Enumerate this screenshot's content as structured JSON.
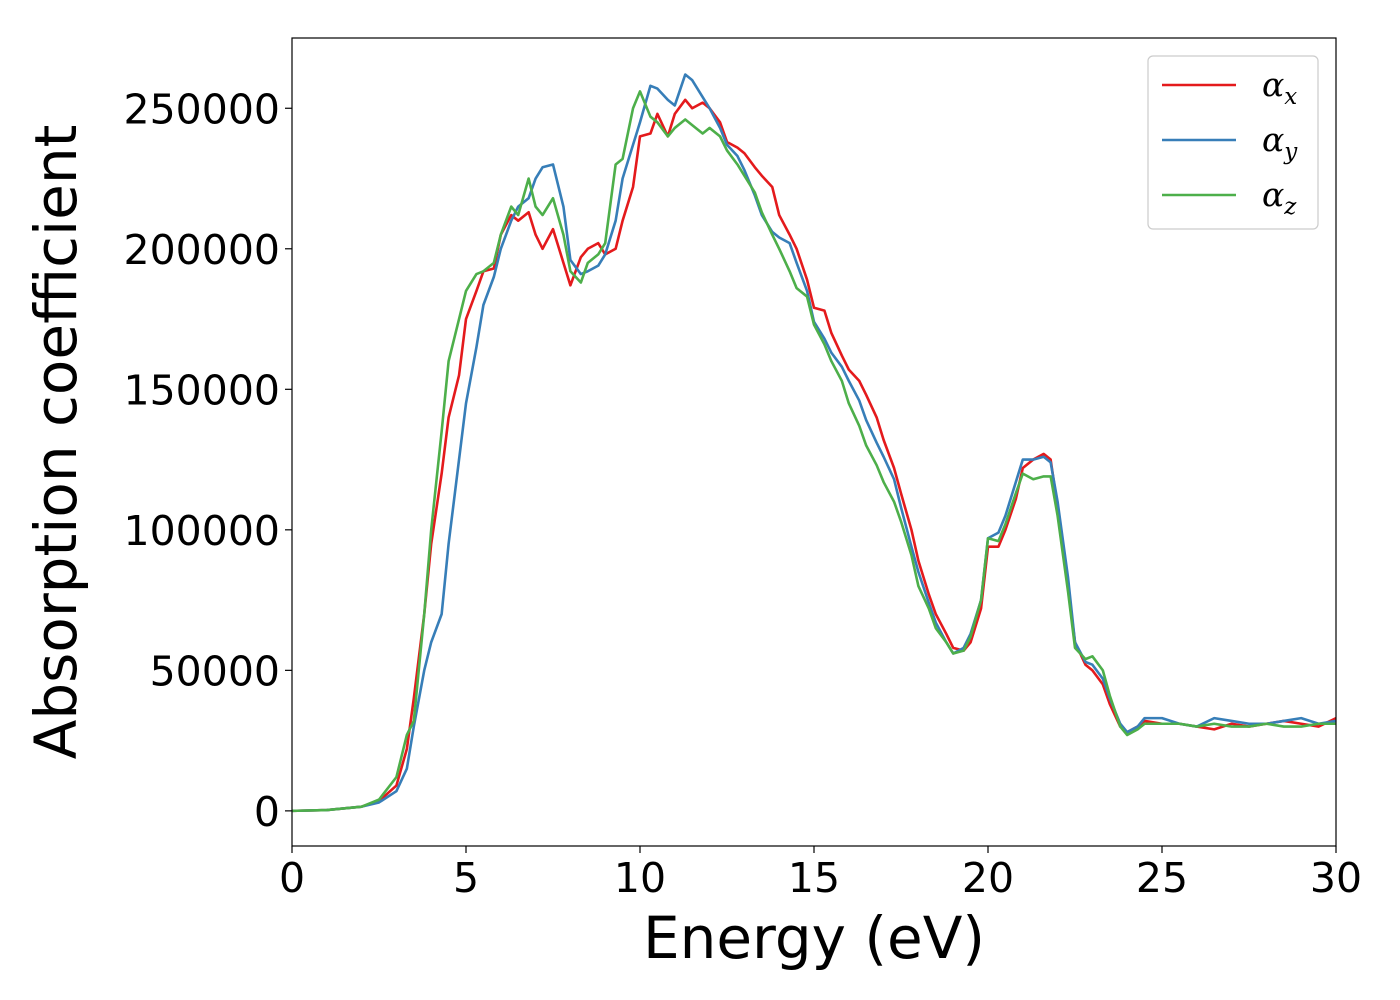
{
  "chart_data": {
    "type": "line",
    "xlabel": "Energy (eV)",
    "ylabel": "Absorption coefficient",
    "xlim": [
      0,
      30
    ],
    "ylim": [
      -12500,
      275000
    ],
    "xticks": [
      0,
      5,
      10,
      15,
      20,
      25,
      30
    ],
    "yticks": [
      0,
      50000,
      100000,
      150000,
      200000,
      250000
    ],
    "xtick_labels": [
      "0",
      "5",
      "10",
      "15",
      "20",
      "25",
      "30"
    ],
    "ytick_labels": [
      "0",
      "50000",
      "100000",
      "150000",
      "200000",
      "250000"
    ],
    "grid": false,
    "legend_position": "top-right",
    "series": [
      {
        "name": "α",
        "subscript": "x",
        "color": "#e41a1c",
        "x": [
          0,
          1,
          2,
          2.5,
          3,
          3.3,
          3.5,
          3.8,
          4,
          4.3,
          4.5,
          4.8,
          5,
          5.3,
          5.5,
          5.8,
          6,
          6.3,
          6.5,
          6.8,
          7,
          7.2,
          7.5,
          7.8,
          8,
          8.3,
          8.5,
          8.8,
          9,
          9.3,
          9.5,
          9.8,
          10,
          10.3,
          10.5,
          10.8,
          11,
          11.3,
          11.5,
          11.8,
          12,
          12.3,
          12.5,
          12.8,
          13,
          13.3,
          13.5,
          13.8,
          14,
          14.3,
          14.5,
          14.8,
          15,
          15.3,
          15.5,
          15.8,
          16,
          16.3,
          16.5,
          16.8,
          17,
          17.3,
          17.5,
          17.8,
          18,
          18.3,
          18.5,
          18.8,
          19,
          19.3,
          19.5,
          19.8,
          20,
          20.3,
          20.5,
          20.8,
          21,
          21.3,
          21.6,
          21.8,
          22,
          22.3,
          22.5,
          22.8,
          23,
          23.3,
          23.5,
          23.8,
          24,
          24.3,
          24.5,
          25,
          25.5,
          26,
          26.5,
          27,
          27.5,
          28,
          28.5,
          29,
          29.5,
          30
        ],
        "values": [
          0,
          300,
          1500,
          3500,
          9000,
          22000,
          40000,
          70000,
          95000,
          120000,
          140000,
          155000,
          175000,
          185000,
          192000,
          193000,
          205000,
          212000,
          210000,
          213000,
          205000,
          200000,
          207000,
          195000,
          187000,
          197000,
          200000,
          202000,
          198000,
          200000,
          210000,
          222000,
          240000,
          241000,
          248000,
          240000,
          248000,
          253000,
          250000,
          252000,
          250000,
          245000,
          238000,
          236000,
          234000,
          229000,
          226000,
          222000,
          212000,
          205000,
          200000,
          189000,
          179000,
          178000,
          170000,
          162000,
          157000,
          153000,
          148000,
          140000,
          132000,
          122000,
          113000,
          100000,
          89000,
          77000,
          70000,
          63000,
          58000,
          57000,
          60000,
          72000,
          94000,
          94000,
          100000,
          111000,
          122000,
          125000,
          127000,
          125000,
          108000,
          80000,
          60000,
          52000,
          50000,
          45000,
          38000,
          30000,
          28000,
          30000,
          32000,
          31000,
          31000,
          30000,
          29000,
          31000,
          30000,
          31000,
          32000,
          31000,
          30000,
          33000
        ]
      },
      {
        "name": "α",
        "subscript": "y",
        "color": "#377eb8",
        "x": [
          0,
          1,
          2,
          2.5,
          3,
          3.3,
          3.5,
          3.8,
          4,
          4.3,
          4.5,
          4.8,
          5,
          5.3,
          5.5,
          5.8,
          6,
          6.3,
          6.5,
          6.8,
          7,
          7.2,
          7.5,
          7.8,
          8,
          8.3,
          8.5,
          8.8,
          9,
          9.3,
          9.5,
          9.8,
          10,
          10.3,
          10.5,
          10.8,
          11,
          11.3,
          11.5,
          11.8,
          12,
          12.3,
          12.5,
          12.8,
          13,
          13.3,
          13.5,
          13.8,
          14,
          14.3,
          14.5,
          14.8,
          15,
          15.3,
          15.5,
          15.8,
          16,
          16.3,
          16.5,
          16.8,
          17,
          17.3,
          17.5,
          17.8,
          18,
          18.3,
          18.5,
          18.8,
          19,
          19.3,
          19.5,
          19.8,
          20,
          20.3,
          20.5,
          20.8,
          21,
          21.3,
          21.6,
          21.8,
          22,
          22.3,
          22.5,
          22.8,
          23,
          23.3,
          23.5,
          23.8,
          24,
          24.3,
          24.5,
          25,
          25.5,
          26,
          26.5,
          27,
          27.5,
          28,
          28.5,
          29,
          29.5,
          30
        ],
        "values": [
          0,
          300,
          1500,
          3000,
          7000,
          15000,
          30000,
          50000,
          60000,
          70000,
          95000,
          125000,
          145000,
          165000,
          180000,
          190000,
          200000,
          210000,
          215000,
          218000,
          225000,
          229000,
          230000,
          215000,
          196000,
          191000,
          192000,
          194000,
          198000,
          210000,
          225000,
          237000,
          245000,
          258000,
          257000,
          253000,
          251000,
          262000,
          260000,
          254000,
          250000,
          243000,
          237000,
          233000,
          228000,
          219000,
          212000,
          206000,
          204000,
          202000,
          195000,
          185000,
          174000,
          168000,
          163000,
          158000,
          153000,
          146000,
          139000,
          131000,
          126000,
          118000,
          108000,
          94000,
          85000,
          74000,
          67000,
          60000,
          56000,
          58000,
          63000,
          75000,
          97000,
          99000,
          105000,
          117000,
          125000,
          125000,
          126000,
          124000,
          110000,
          83000,
          60000,
          53000,
          52000,
          47000,
          40000,
          31000,
          28000,
          30000,
          33000,
          33000,
          31000,
          30000,
          33000,
          32000,
          31000,
          31000,
          32000,
          33000,
          31000,
          32000
        ]
      },
      {
        "name": "α",
        "subscript": "z",
        "color": "#4daf4a",
        "x": [
          0,
          1,
          2,
          2.5,
          3,
          3.3,
          3.5,
          3.8,
          4,
          4.3,
          4.5,
          4.8,
          5,
          5.3,
          5.5,
          5.8,
          6,
          6.3,
          6.5,
          6.8,
          7,
          7.2,
          7.5,
          7.8,
          8,
          8.3,
          8.5,
          8.8,
          9,
          9.3,
          9.5,
          9.8,
          10,
          10.3,
          10.5,
          10.8,
          11,
          11.3,
          11.5,
          11.8,
          12,
          12.3,
          12.5,
          12.8,
          13,
          13.3,
          13.5,
          13.8,
          14,
          14.3,
          14.5,
          14.8,
          15,
          15.3,
          15.5,
          15.8,
          16,
          16.3,
          16.5,
          16.8,
          17,
          17.3,
          17.5,
          17.8,
          18,
          18.3,
          18.5,
          18.8,
          19,
          19.3,
          19.5,
          19.8,
          20,
          20.3,
          20.5,
          20.8,
          21,
          21.3,
          21.6,
          21.8,
          22,
          22.3,
          22.5,
          22.8,
          23,
          23.3,
          23.5,
          23.8,
          24,
          24.3,
          24.5,
          25,
          25.5,
          26,
          26.5,
          27,
          27.5,
          28,
          28.5,
          29,
          29.5,
          30
        ],
        "values": [
          0,
          300,
          1500,
          4000,
          12000,
          27000,
          32000,
          70000,
          100000,
          135000,
          160000,
          175000,
          185000,
          191000,
          192000,
          195000,
          205000,
          215000,
          212000,
          225000,
          215000,
          212000,
          218000,
          205000,
          192000,
          188000,
          195000,
          198000,
          202000,
          230000,
          232000,
          250000,
          256000,
          247000,
          245000,
          240000,
          243000,
          246000,
          244000,
          241000,
          243000,
          240000,
          235000,
          230000,
          226000,
          220000,
          213000,
          205000,
          200000,
          192000,
          186000,
          183000,
          173000,
          166000,
          160000,
          153000,
          145000,
          137000,
          130000,
          123000,
          117000,
          110000,
          103000,
          91000,
          80000,
          72000,
          65000,
          60000,
          56000,
          57000,
          62000,
          75000,
          97000,
          96000,
          102000,
          113000,
          120000,
          118000,
          119000,
          119000,
          105000,
          78000,
          58000,
          54000,
          55000,
          50000,
          41000,
          30000,
          27000,
          29000,
          31000,
          31000,
          31000,
          30000,
          31000,
          30000,
          30000,
          31000,
          30000,
          30000,
          31000,
          31000
        ]
      }
    ]
  }
}
